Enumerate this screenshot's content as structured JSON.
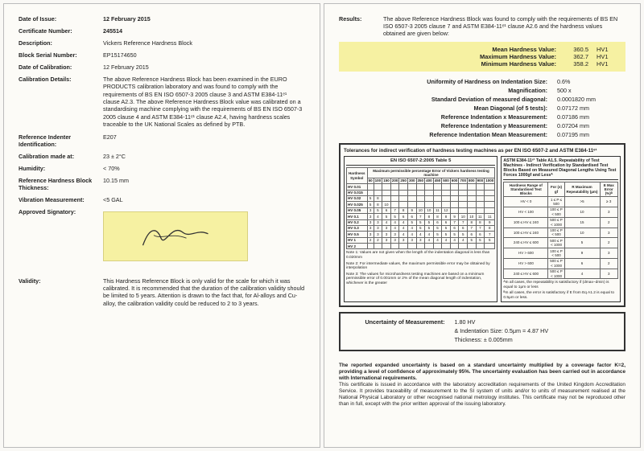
{
  "left": {
    "date_of_issue_label": "Date of Issue:",
    "date_of_issue": "12 February 2015",
    "cert_num_label": "Certificate Number:",
    "cert_num": "245514",
    "description_label": "Description:",
    "description": "Vickers Reference Hardness Block",
    "serial_label": "Block Serial Number:",
    "serial": "EP15174650",
    "cal_date_label": "Date of Calibration:",
    "cal_date": "12 February 2015",
    "cal_details_label": "Calibration Details:",
    "cal_details": "The above Reference Hardness Block has been examined in the EURO PRODUCTS calibration laboratory and was found to comply with the requirements of BS EN ISO 6507-3 2005 clause 3 and ASTM E384-11ᵉ¹ clause A2.3. The above Reference Hardness Block value was calibrated on a standardising machine complying with the requirements of BS EN ISO 6507-3 2005 clause 4 and ASTM E384-11ᵉ¹ clause A2.4, having hardness scales traceable to the UK National Scales as defined by PTB.",
    "indenter_label": "Reference Indenter Identification:",
    "indenter": "E207",
    "cal_at_label": "Calibration made at:",
    "cal_at": "23 ± 2°C",
    "humidity_label": "Humidity:",
    "humidity": "< 70%",
    "thickness_label": "Reference Hardness Block Thickness:",
    "thickness": "10.15 mm",
    "vib_label": "Vibration Measurement:",
    "vib": "<5 GAL",
    "sig_label": "Approved Signatory:",
    "validity_label": "Validity:",
    "validity": "This Hardness Reference Block is only valid for the scale for which it was calibrated. It is recommended that the duration of the calibration validity should be limited to 5 years. Attention is drawn to the fact that, for Al-alloys and Cu-alloy, the calibration validity could be reduced to 2 to 3 years."
  },
  "right": {
    "results_label": "Results:",
    "results_intro": "The above Reference Hardness Block was found to comply with the requirements of BS EN ISO 6507-3 2005 clause 7 and ASTM E384-11ᵉ¹ clause A2.6 and the hardness values obtained are given below:",
    "hl": {
      "mean_l": "Mean Hardness Value:",
      "mean_v": "360.5",
      "mean_u": "HV1",
      "max_l": "Maximum Hardness Value:",
      "max_v": "362.7",
      "max_u": "HV1",
      "min_l": "Minimum Hardness Value:",
      "min_v": "358.2",
      "min_u": "HV1"
    },
    "uniformity_l": "Uniformity of Hardness on Indentation Size:",
    "uniformity_v": "0.6%",
    "mag_l": "Magnification:",
    "mag_v": "500 x",
    "sd_l": "Standard Deviation of measured diagonal:",
    "sd_v": "0.0001820 mm",
    "md_l": "Mean Diagonal (of 5 tests):",
    "md_v": "0.07172 mm",
    "rx_l": "Reference Indentation x Measurement:",
    "rx_v": "0.07186 mm",
    "ry_l": "Reference Indentation y Measurement:",
    "ry_v": "0.07204 mm",
    "rm_l": "Reference Indentation Mean Measurement:",
    "rm_v": "0.07195 mm",
    "tol_title": "Tolerances for indirect verification of hardness testing machines as per EN ISO 6507-2 and ASTM E384-11ᵉ¹",
    "tol_left_head": "EN ISO 6507-2:2005 Table 5",
    "tol_right_head": "ASTM E384-11ᵉ¹ Table A1.5. Repeatability of Test Machines - Indirect Verification by Standardised Test Blocks Based on Measured Diagonal Lengths Using Test Forces 1000gf and Lessᴬ",
    "tol_left_sub": "Maximum permissible percentage Error of Vickers hardness testing machine",
    "left_scales": [
      "HV 0.01",
      "HV 0.015",
      "HV 0.02",
      "HV 0.025",
      "HV 0.05",
      "HV 0.1",
      "HV 0.2",
      "HV 0.3",
      "HV 0.5",
      "HV 1",
      "HV 2"
    ],
    "left_heads": [
      "50",
      "100",
      "150",
      "200",
      "250",
      "300",
      "350",
      "400",
      "450",
      "500",
      "600",
      "700",
      "800",
      "900",
      "1000"
    ],
    "right_col1": "Hardness Range of Standardised Test Blocks",
    "right_col2": "For (±) gf",
    "right_col3": "R Maximum Repeatability (μm)",
    "right_col4": "E Max Error (%)ᴮ",
    "right_rows": [
      [
        "HV < 0",
        "1 ≤ P ≤ 500",
        ">5",
        "≥ 3"
      ],
      [
        "HV < 100",
        "100 ≤ P < 500",
        "10",
        "3"
      ],
      [
        "100 ≤ HV ≤ 240",
        "500 ≤ P < 1000",
        "15",
        "2"
      ],
      [
        "100 ≤ HV ≤ 240",
        "100 ≤ P < 500",
        "10",
        "3"
      ],
      [
        "240 ≤ HV ≤ 600",
        "500 ≤ P < 1000",
        "5",
        "2"
      ],
      [
        "HV > 600",
        "100 ≤ P < 500",
        "9",
        "3"
      ],
      [
        "HV > 600",
        "500 ≤ P < 1000",
        "6",
        "2"
      ],
      [
        "240 ≤ HV ≤ 600",
        "500 ≤ P < 1000",
        "4",
        "3"
      ]
    ],
    "note1": "Note 1: Values are not given when the length of the indentation diagonal is less than 0.020mm",
    "note2": "Note 2: For intermediate values, the maximum permissible error may be obtained by interpolation",
    "note3": "Note 3: The values for microhardness testing machines are based on a minimum permissible error of 0.001mm or 2% of the mean diagonal length of indentation, whichever is the greater",
    "noteA": "ᴬIn all cases, the repeatability is satisfactory if (dmax−dmin) is equal to 1μm or less",
    "noteB": "ᴮIn all cases, the error is satisfactory if E from Eq A1.2 is equal to 0.5μm or less.",
    "uom_l": "Uncertainty of Measurement:",
    "uom_v": "1.80 HV",
    "uom_ind": "& Indentation Size: 0.5μm = 4.87 HV",
    "uom_thick": "Thickness: ± 0.005mm",
    "foot_bold": "The reported expanded uncertainty is based on a standard uncertainty multiplied by a coverage factor K=2, providing a level of confidence of approximately 95%. The uncertainty evaluation has been carried out in accordance with International requirements.",
    "foot_text": "This certificate is issued in accordance with the laboratory accreditation requirements of the United Kingdom Accreditation Service. It provides traceability of measurement to the SI system of units and/or to units of measurement realised at the National Physical Laboratory or other recognised national metrology institutes. This certificate may not be reproduced other than in full, except with the prior written approval of the issuing laboratory."
  }
}
